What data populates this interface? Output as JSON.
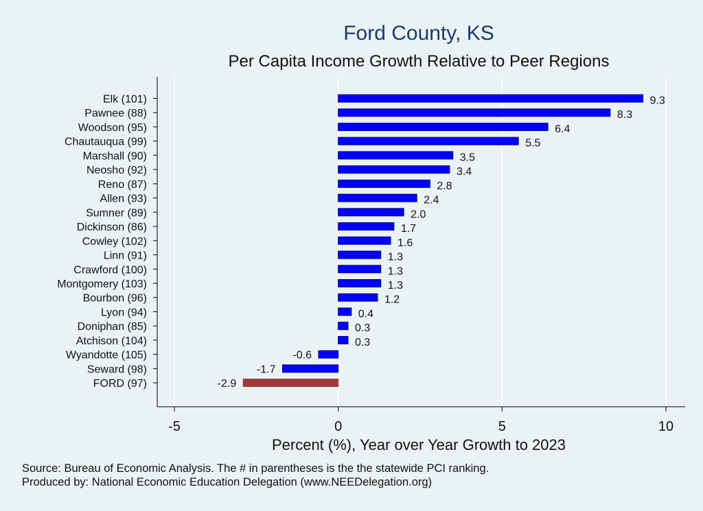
{
  "chart_data": {
    "type": "bar",
    "orientation": "horizontal",
    "title": "Ford County, KS",
    "subtitle": "Per Capita Income Growth Relative to Peer Regions",
    "xlabel": "Percent (%), Year over Year Growth to 2023",
    "ylabel": "",
    "xlim": [
      -5,
      10
    ],
    "xticks": [
      -5,
      0,
      5,
      10
    ],
    "grid": "vertical",
    "categories": [
      "Elk (101)",
      "Pawnee (88)",
      "Woodson (95)",
      "Chautauqua (99)",
      "Marshall (90)",
      "Neosho (92)",
      "Reno (87)",
      "Allen (93)",
      "Sumner (89)",
      "Dickinson (86)",
      "Cowley (102)",
      "Linn (91)",
      "Crawford (100)",
      "Montgomery (103)",
      "Bourbon (96)",
      "Lyon (94)",
      "Doniphan (85)",
      "Atchison (104)",
      "Wyandotte (105)",
      "Seward (98)",
      "FORD (97)"
    ],
    "values": [
      9.3,
      8.3,
      6.4,
      5.5,
      3.5,
      3.4,
      2.8,
      2.4,
      2.0,
      1.7,
      1.6,
      1.3,
      1.3,
      1.3,
      1.2,
      0.4,
      0.3,
      0.3,
      -0.6,
      -1.7,
      -2.9
    ],
    "value_labels": [
      "9.3",
      "8.3",
      "6.4",
      "5.5",
      "3.5",
      "3.4",
      "2.8",
      "2.4",
      "2.0",
      "1.7",
      "1.6",
      "1.3",
      "1.3",
      "1.3",
      "1.2",
      "0.4",
      "0.3",
      "0.3",
      "-0.6",
      "-1.7",
      "-2.9"
    ],
    "highlight": "FORD (97)",
    "colors": {
      "bar": "#0000ff",
      "bar_stroke": "#00008b",
      "highlight": "#a03a3a",
      "title": "#1a3a6b",
      "grid": "#ffffff",
      "axis": "#000000",
      "plot_bg": "#eaf2f3"
    }
  },
  "source": {
    "line1": "Source: Bureau of Economic Analysis. The # in parentheses is the the statewide PCI ranking.",
    "line2": "Produced by: National Economic Education Delegation (www.NEEDelegation.org)"
  }
}
